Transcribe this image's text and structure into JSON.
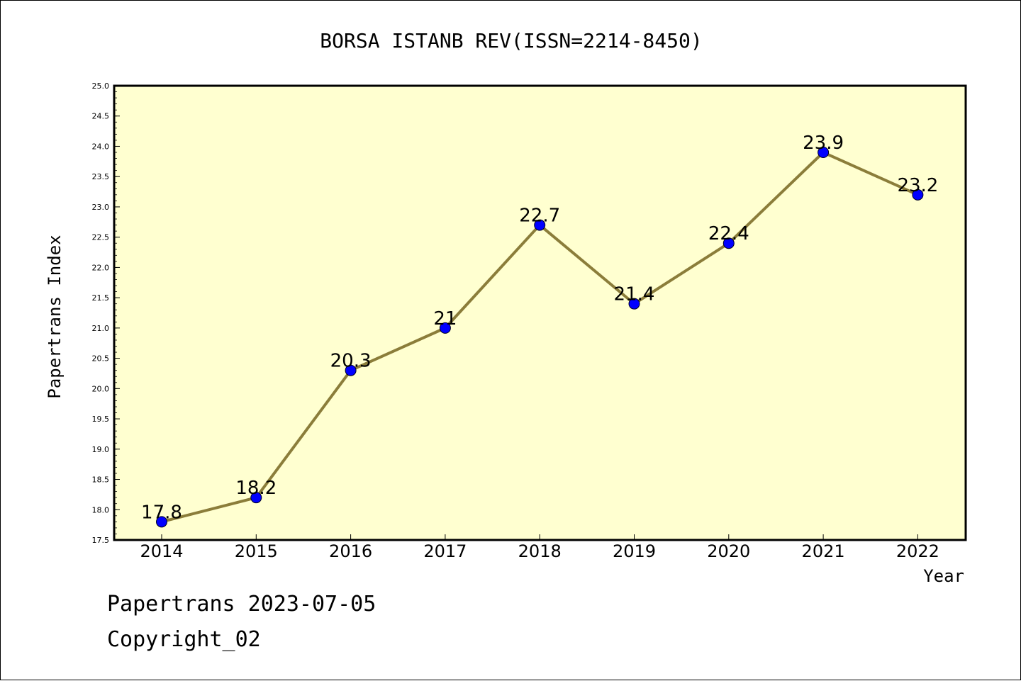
{
  "chart_data": {
    "type": "line",
    "title": "BORSA ISTANB REV(ISSN=2214-8450)",
    "xlabel": "Year",
    "ylabel": "Papertrans Index",
    "categories": [
      "2014",
      "2015",
      "2016",
      "2017",
      "2018",
      "2019",
      "2020",
      "2021",
      "2022"
    ],
    "series": [
      {
        "values": [
          17.8,
          18.2,
          20.3,
          21,
          22.7,
          21.4,
          22.4,
          23.9,
          23.2
        ]
      }
    ],
    "data_labels": [
      "17.8",
      "18.2",
      "20.3",
      "21",
      "22.7",
      "21.4",
      "22.4",
      "23.9",
      "23.2"
    ],
    "ylim": [
      17.5,
      25.0
    ],
    "yticks": [
      "17.5",
      "18.0",
      "18.5",
      "19.0",
      "19.5",
      "20.0",
      "20.5",
      "21.0",
      "21.5",
      "22.0",
      "22.5",
      "23.0",
      "23.5",
      "24.0",
      "24.5",
      "25.0"
    ],
    "grid": false,
    "colors": {
      "plot_background": "#ffffd0",
      "line": "#8b7d3a",
      "marker": "#0000ff"
    }
  },
  "footer": {
    "date_text": "Papertrans 2023-07-05",
    "copyright_text": "Copyright_02"
  }
}
